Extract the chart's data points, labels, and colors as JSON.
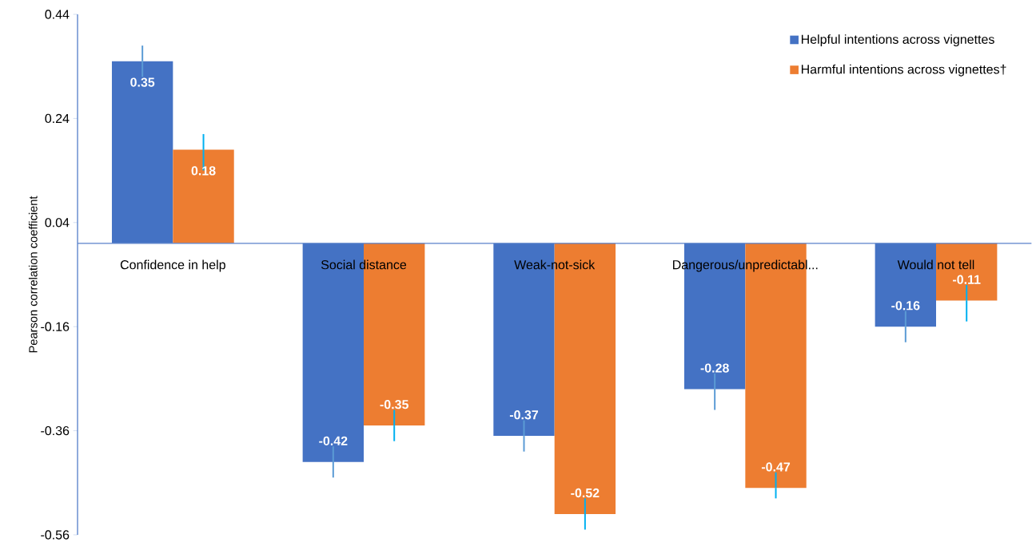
{
  "chart_data": {
    "type": "bar",
    "ylabel": "Pearson correlation coefficient",
    "categories": [
      "Confidence in help",
      "Social distance",
      "Weak-not-sick",
      "Dangerous/unpredictabl...",
      "Would not tell"
    ],
    "series": [
      {
        "name": "Helpful intentions across vignettes",
        "color": "#4472c4",
        "values": [
          0.35,
          -0.42,
          -0.37,
          -0.28,
          -0.16
        ],
        "errors": [
          [
            0.32,
            0.38
          ],
          [
            -0.45,
            -0.39
          ],
          [
            -0.4,
            -0.34
          ],
          [
            -0.32,
            -0.25
          ],
          [
            -0.19,
            -0.13
          ]
        ]
      },
      {
        "name": "Harmful intentions across vignettes†",
        "color": "#ed7d31",
        "values": [
          0.18,
          -0.35,
          -0.52,
          -0.47,
          -0.11
        ],
        "errors": [
          [
            0.14,
            0.21
          ],
          [
            -0.38,
            -0.32
          ],
          [
            -0.55,
            -0.49
          ],
          [
            -0.49,
            -0.44
          ],
          [
            -0.15,
            -0.08
          ]
        ]
      }
    ],
    "ylim": [
      -0.56,
      0.44
    ],
    "yticks": [
      -0.56,
      -0.36,
      -0.16,
      0.04,
      0.24,
      0.44
    ],
    "data_labels": true,
    "legend": "top right",
    "grid": false
  }
}
